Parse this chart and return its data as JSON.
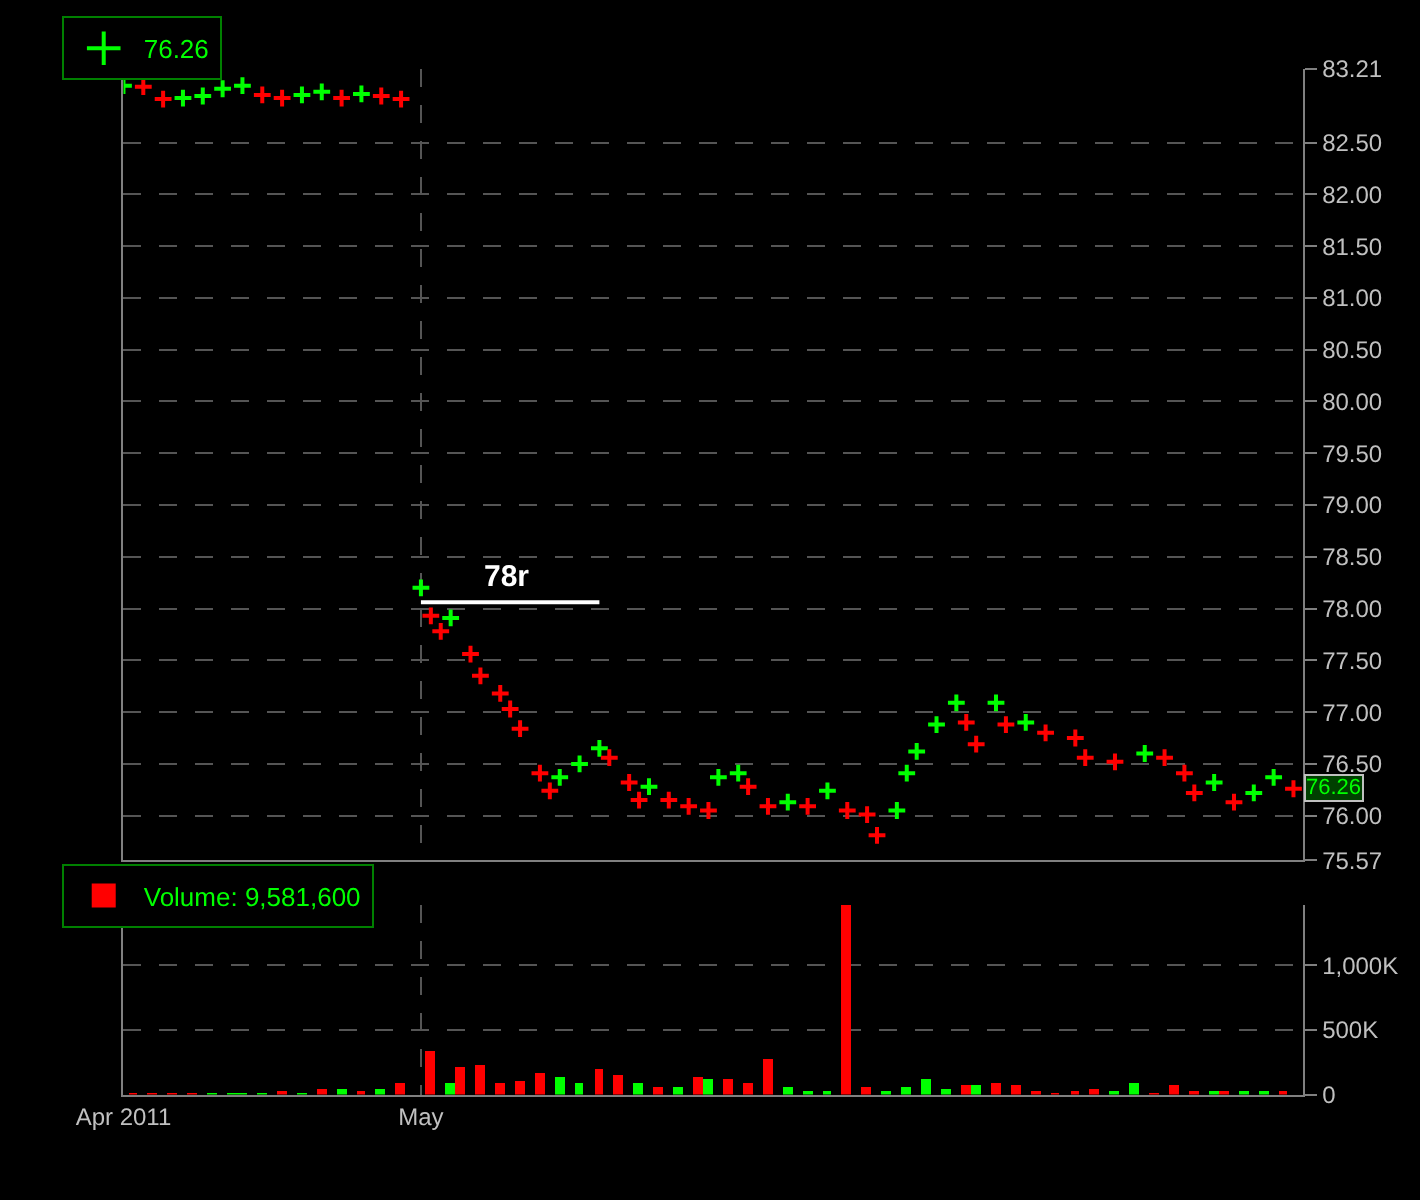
{
  "chart_data": [
    {
      "type": "scatter",
      "legend": "top left",
      "grid": true,
      "tick_labels": "y",
      "xlim": [
        "2011-04-01",
        "2011-07-29"
      ],
      "xticks": [
        {
          "value": "2011-04-01",
          "label": null
        },
        {
          "value": "2011-05-01",
          "label": null
        }
      ],
      "ylim": [
        75.57,
        83.21
      ],
      "yticks": [
        {
          "value": 75.57,
          "label": "75.57"
        },
        {
          "value": 76,
          "label": "76.00"
        },
        {
          "value": 76.5,
          "label": "76.50"
        },
        {
          "value": 77,
          "label": "77.00"
        },
        {
          "value": 77.5,
          "label": "77.50"
        },
        {
          "value": 78,
          "label": "78.00"
        },
        {
          "value": 78.5,
          "label": "78.50"
        },
        {
          "value": 79,
          "label": "79.00"
        },
        {
          "value": 79.5,
          "label": "79.50"
        },
        {
          "value": 80,
          "label": "80.00"
        },
        {
          "value": 80.5,
          "label": "80.50"
        },
        {
          "value": 81,
          "label": "81.00"
        },
        {
          "value": 81.5,
          "label": "81.50"
        },
        {
          "value": 82,
          "label": "82.00"
        },
        {
          "value": 82.5,
          "label": "82.50"
        },
        {
          "value": 83.21,
          "label": "83.21"
        }
      ],
      "annotations": [
        {
          "text": "76.26",
          "y": 76.26
        }
      ],
      "series": [
        {
          "name": "76.26",
          "marker": "cross",
          "x": [
            "2011-04-01",
            "2011-04-03",
            "2011-04-05",
            "2011-04-07",
            "2011-04-09",
            "2011-04-11",
            "2011-04-13",
            "2011-04-15",
            "2011-04-17",
            "2011-04-19",
            "2011-04-21",
            "2011-04-23",
            "2011-04-25",
            "2011-04-27",
            "2011-04-29",
            "2011-05-01",
            "2011-05-02",
            "2011-05-03",
            "2011-05-04",
            "2011-05-06",
            "2011-05-07",
            "2011-05-09",
            "2011-05-10",
            "2011-05-11",
            "2011-05-13",
            "2011-05-14",
            "2011-05-15",
            "2011-05-17",
            "2011-05-19",
            "2011-05-20",
            "2011-05-22",
            "2011-05-23",
            "2011-05-24",
            "2011-05-26",
            "2011-05-28",
            "2011-05-30",
            "2011-05-31",
            "2011-06-02",
            "2011-06-03",
            "2011-06-05",
            "2011-06-07",
            "2011-06-09",
            "2011-06-11",
            "2011-06-13",
            "2011-06-15",
            "2011-06-16",
            "2011-06-18",
            "2011-06-19",
            "2011-06-20",
            "2011-06-22",
            "2011-06-24",
            "2011-06-25",
            "2011-06-26",
            "2011-06-28",
            "2011-06-29",
            "2011-07-01",
            "2011-07-03",
            "2011-07-06",
            "2011-07-07",
            "2011-07-10",
            "2011-07-13",
            "2011-07-15",
            "2011-07-17",
            "2011-07-18",
            "2011-07-20",
            "2011-07-22",
            "2011-07-24",
            "2011-07-26",
            "2011-07-28"
          ],
          "values": [
            83.05,
            83.04,
            82.92,
            82.93,
            82.95,
            83.02,
            83.05,
            82.96,
            82.93,
            82.96,
            82.99,
            82.93,
            82.97,
            82.95,
            82.92,
            78.2,
            77.93,
            77.78,
            77.91,
            77.56,
            77.35,
            77.18,
            77.03,
            76.84,
            76.41,
            76.24,
            76.37,
            76.5,
            76.65,
            76.56,
            76.32,
            76.15,
            76.28,
            76.15,
            76.09,
            76.05,
            76.37,
            76.41,
            76.28,
            76.09,
            76.13,
            76.09,
            76.24,
            76.05,
            76.01,
            75.81,
            76.05,
            76.41,
            76.62,
            76.88,
            77.09,
            76.9,
            76.69,
            77.09,
            76.88,
            76.9,
            76.8,
            76.75,
            76.56,
            76.52,
            76.6,
            76.56,
            76.41,
            76.22,
            76.32,
            76.13,
            76.22,
            76.37,
            76.26
          ],
          "colors": [
            "#00ff00",
            "#ff0000",
            "#ff0000",
            "#00ff00",
            "#00ff00",
            "#00ff00",
            "#00ff00",
            "#ff0000",
            "#ff0000",
            "#00ff00",
            "#00ff00",
            "#ff0000",
            "#00ff00",
            "#ff0000",
            "#ff0000",
            "#00ff00",
            "#ff0000",
            "#ff0000",
            "#00ff00",
            "#ff0000",
            "#ff0000",
            "#ff0000",
            "#ff0000",
            "#ff0000",
            "#ff0000",
            "#ff0000",
            "#00ff00",
            "#00ff00",
            "#00ff00",
            "#ff0000",
            "#ff0000",
            "#ff0000",
            "#00ff00",
            "#ff0000",
            "#ff0000",
            "#ff0000",
            "#00ff00",
            "#00ff00",
            "#ff0000",
            "#ff0000",
            "#00ff00",
            "#ff0000",
            "#00ff00",
            "#ff0000",
            "#ff0000",
            "#ff0000",
            "#00ff00",
            "#00ff00",
            "#00ff00",
            "#00ff00",
            "#00ff00",
            "#ff0000",
            "#ff0000",
            "#00ff00",
            "#ff0000",
            "#00ff00",
            "#ff0000",
            "#ff0000",
            "#ff0000",
            "#ff0000",
            "#00ff00",
            "#ff0000",
            "#ff0000",
            "#ff0000",
            "#00ff00",
            "#ff0000",
            "#00ff00",
            "#00ff00",
            "#ff0000"
          ]
        },
        {
          "type": "line",
          "name": "78r",
          "color": "#ffffff",
          "x": [
            "2011-05-01",
            "2011-05-19"
          ],
          "values": [
            78.06,
            78.06
          ]
        }
      ]
    },
    {
      "type": "bar",
      "legend": "top left",
      "grid": true,
      "xlim": [
        "2011-04-01",
        "2011-07-29"
      ],
      "xticks": [
        {
          "value": "2011-04-01",
          "label": "Apr 2011"
        },
        {
          "value": "2011-05-01",
          "label": "May"
        }
      ],
      "ylim": [
        0,
        1470000
      ],
      "yticks": [
        {
          "value": 0,
          "label": "0"
        },
        {
          "value": 500000,
          "label": "500K"
        },
        {
          "value": 1000000,
          "label": "1,000K"
        }
      ],
      "series": [
        {
          "name": "Volume: 9,581,600",
          "x": [
            "2011-04-02",
            "2011-04-04",
            "2011-04-06",
            "2011-04-08",
            "2011-04-10",
            "2011-04-12",
            "2011-04-13",
            "2011-04-15",
            "2011-04-17",
            "2011-04-19",
            "2011-04-21",
            "2011-04-23",
            "2011-04-25",
            "2011-04-27",
            "2011-04-29",
            "2011-05-02",
            "2011-05-04",
            "2011-05-05",
            "2011-05-07",
            "2011-05-09",
            "2011-05-11",
            "2011-05-13",
            "2011-05-15",
            "2011-05-17",
            "2011-05-19",
            "2011-05-21",
            "2011-05-23",
            "2011-05-25",
            "2011-05-27",
            "2011-05-29",
            "2011-05-30",
            "2011-06-01",
            "2011-06-03",
            "2011-06-05",
            "2011-06-07",
            "2011-06-09",
            "2011-06-11",
            "2011-06-13",
            "2011-06-15",
            "2011-06-17",
            "2011-06-19",
            "2011-06-21",
            "2011-06-23",
            "2011-06-25",
            "2011-06-26",
            "2011-06-28",
            "2011-06-30",
            "2011-07-02",
            "2011-07-04",
            "2011-07-06",
            "2011-07-08",
            "2011-07-10",
            "2011-07-12",
            "2011-07-14",
            "2011-07-16",
            "2011-07-18",
            "2011-07-20",
            "2011-07-21",
            "2011-07-23",
            "2011-07-25",
            "2011-07-27"
          ],
          "values": [
            14000,
            14000,
            14000,
            14000,
            14000,
            14000,
            14000,
            14000,
            21000,
            14000,
            41000,
            41000,
            21000,
            48000,
            90000,
            338000,
            90000,
            214000,
            228000,
            90000,
            110000,
            166000,
            138000,
            90000,
            200000,
            152000,
            90000,
            62000,
            62000,
            138000,
            117000,
            117000,
            90000,
            276000,
            62000,
            28000,
            21000,
            1470000,
            62000,
            34000,
            62000,
            117000,
            48000,
            76000,
            76000,
            90000,
            76000,
            21000,
            7000,
            34000,
            48000,
            21000,
            90000,
            7000,
            76000,
            34000,
            21000,
            21000,
            34000,
            34000,
            34000
          ],
          "colors": [
            "#ff0000",
            "#ff0000",
            "#ff0000",
            "#ff0000",
            "#00ff00",
            "#00ff00",
            "#00ff00",
            "#00ff00",
            "#ff0000",
            "#00ff00",
            "#ff0000",
            "#00ff00",
            "#ff0000",
            "#00ff00",
            "#ff0000",
            "#ff0000",
            "#00ff00",
            "#ff0000",
            "#ff0000",
            "#ff0000",
            "#ff0000",
            "#ff0000",
            "#00ff00",
            "#00ff00",
            "#ff0000",
            "#ff0000",
            "#00ff00",
            "#ff0000",
            "#00ff00",
            "#ff0000",
            "#00ff00",
            "#ff0000",
            "#ff0000",
            "#ff0000",
            "#00ff00",
            "#00ff00",
            "#00ff00",
            "#ff0000",
            "#ff0000",
            "#00ff00",
            "#00ff00",
            "#00ff00",
            "#00ff00",
            "#ff0000",
            "#00ff00",
            "#ff0000",
            "#ff0000",
            "#ff0000",
            "#ff0000",
            "#ff0000",
            "#ff0000",
            "#00ff00",
            "#00ff00",
            "#ff0000",
            "#ff0000",
            "#ff0000",
            "#00ff00",
            "#ff0000",
            "#00ff00",
            "#00ff00",
            "#ff0000"
          ]
        }
      ]
    }
  ]
}
